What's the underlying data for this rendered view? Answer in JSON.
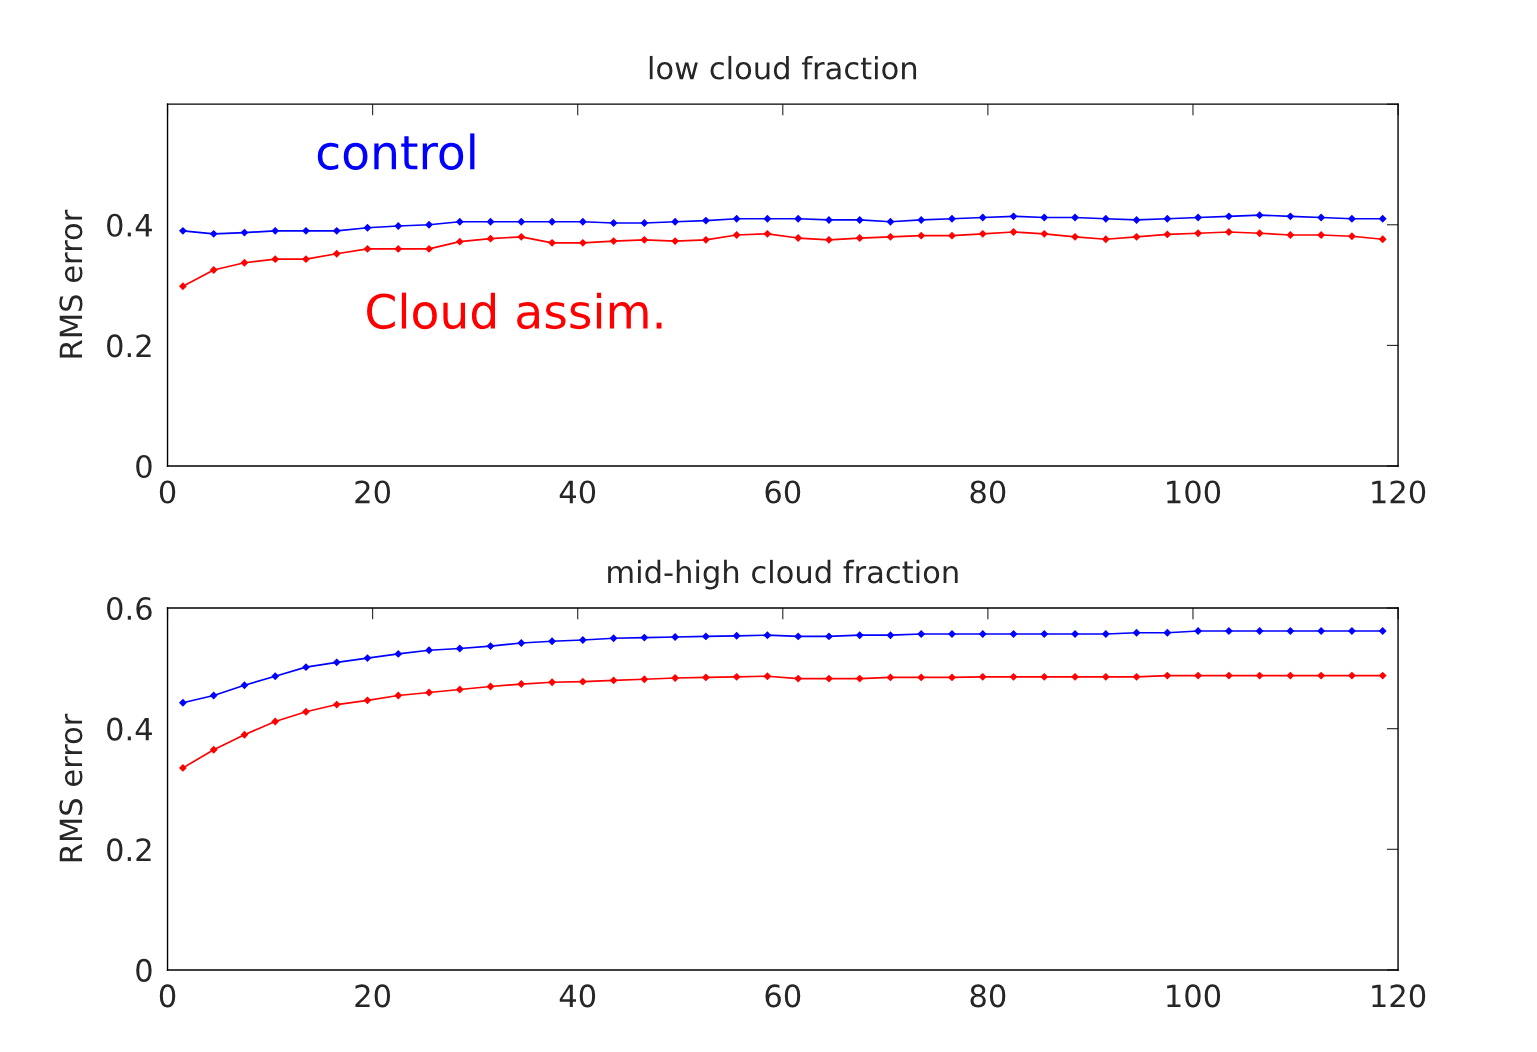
{
  "chart_data": [
    {
      "type": "line",
      "title": "low cloud fraction",
      "ylabel": "RMS error",
      "xlim": [
        0,
        120
      ],
      "xticks": [
        0,
        20,
        40,
        60,
        80,
        100,
        120
      ],
      "ylim": [
        0,
        0.6
      ],
      "yticks": [
        0,
        0.2,
        0.4,
        {
          "value": 0.6,
          "label": null
        }
      ],
      "marker": "diamond",
      "grid": false,
      "legend": false,
      "x": [
        1.5,
        4.5,
        7.5,
        10.5,
        13.5,
        16.5,
        19.5,
        22.5,
        25.5,
        28.5,
        31.5,
        34.5,
        37.5,
        40.5,
        43.5,
        46.5,
        49.5,
        52.5,
        55.5,
        58.5,
        61.5,
        64.5,
        67.5,
        70.5,
        73.5,
        76.5,
        79.5,
        82.5,
        85.5,
        88.5,
        91.5,
        94.5,
        97.5,
        100.5,
        103.5,
        106.5,
        109.5,
        112.5,
        115.5,
        118.5
      ],
      "series": [
        {
          "name": "control",
          "color": "#0000ff",
          "values": [
            0.39,
            0.385,
            0.387,
            0.39,
            0.39,
            0.39,
            0.395,
            0.398,
            0.4,
            0.405,
            0.405,
            0.405,
            0.405,
            0.405,
            0.403,
            0.403,
            0.405,
            0.407,
            0.41,
            0.41,
            0.41,
            0.408,
            0.408,
            0.405,
            0.408,
            0.41,
            0.412,
            0.414,
            0.412,
            0.412,
            0.41,
            0.408,
            0.41,
            0.412,
            0.414,
            0.416,
            0.414,
            0.412,
            0.41,
            0.41
          ]
        },
        {
          "name": "Cloud assim.",
          "color": "#ff0000",
          "values": [
            0.298,
            0.325,
            0.337,
            0.343,
            0.343,
            0.352,
            0.36,
            0.36,
            0.36,
            0.372,
            0.377,
            0.38,
            0.37,
            0.37,
            0.373,
            0.375,
            0.373,
            0.375,
            0.383,
            0.385,
            0.378,
            0.375,
            0.378,
            0.38,
            0.382,
            0.382,
            0.385,
            0.388,
            0.385,
            0.38,
            0.376,
            0.38,
            0.384,
            0.386,
            0.388,
            0.386,
            0.383,
            0.383,
            0.381,
            0.376
          ]
        }
      ]
    },
    {
      "type": "line",
      "title": "mid-high cloud fraction",
      "ylabel": "RMS error",
      "xlim": [
        0,
        120
      ],
      "xticks": [
        0,
        20,
        40,
        60,
        80,
        100,
        120
      ],
      "ylim": [
        0,
        0.6
      ],
      "yticks": [
        0,
        0.2,
        0.4,
        0.6
      ],
      "marker": "diamond",
      "grid": false,
      "legend": false,
      "x": [
        1.5,
        4.5,
        7.5,
        10.5,
        13.5,
        16.5,
        19.5,
        22.5,
        25.5,
        28.5,
        31.5,
        34.5,
        37.5,
        40.5,
        43.5,
        46.5,
        49.5,
        52.5,
        55.5,
        58.5,
        61.5,
        64.5,
        67.5,
        70.5,
        73.5,
        76.5,
        79.5,
        82.5,
        85.5,
        88.5,
        91.5,
        94.5,
        97.5,
        100.5,
        103.5,
        106.5,
        109.5,
        112.5,
        115.5,
        118.5
      ],
      "series": [
        {
          "color": "#0000ff",
          "values": [
            0.443,
            0.455,
            0.472,
            0.487,
            0.502,
            0.51,
            0.517,
            0.524,
            0.53,
            0.533,
            0.537,
            0.542,
            0.545,
            0.547,
            0.55,
            0.551,
            0.552,
            0.553,
            0.554,
            0.555,
            0.553,
            0.553,
            0.555,
            0.555,
            0.557,
            0.557,
            0.557,
            0.557,
            0.557,
            0.557,
            0.557,
            0.559,
            0.559,
            0.562,
            0.562,
            0.562,
            0.562,
            0.562,
            0.562,
            0.562
          ]
        },
        {
          "color": "#ff0000",
          "values": [
            0.335,
            0.365,
            0.39,
            0.412,
            0.428,
            0.44,
            0.447,
            0.455,
            0.46,
            0.465,
            0.47,
            0.474,
            0.477,
            0.478,
            0.48,
            0.482,
            0.484,
            0.485,
            0.486,
            0.487,
            0.483,
            0.483,
            0.483,
            0.485,
            0.485,
            0.485,
            0.486,
            0.486,
            0.486,
            0.486,
            0.486,
            0.486,
            0.488,
            0.488,
            0.488,
            0.488,
            0.488,
            0.488,
            0.488,
            0.488
          ]
        }
      ]
    }
  ]
}
